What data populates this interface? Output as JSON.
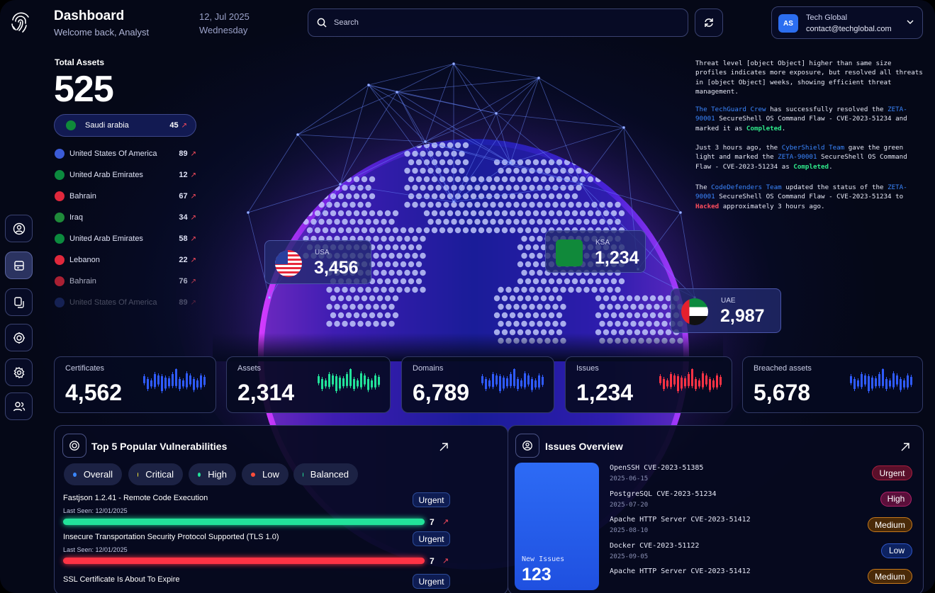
{
  "header": {
    "title": "Dashboard",
    "subtitle": "Welcome back, Analyst",
    "date": "12, Jul 2025",
    "weekday": "Wednesday",
    "search_placeholder": "Search",
    "account": {
      "initials": "AS",
      "name": "Tech Global",
      "email": "contact@techglobal.com"
    }
  },
  "assets": {
    "label": "Total Assets",
    "total": "525",
    "selected": {
      "country": "Saudi arabia",
      "count": "45"
    },
    "countries": [
      {
        "name": "United States Of America",
        "count": "89"
      },
      {
        "name": "United Arab Emirates",
        "count": "12"
      },
      {
        "name": "Bahrain",
        "count": "67"
      },
      {
        "name": "Iraq",
        "count": "34"
      },
      {
        "name": "United Arab Emirates",
        "count": "58"
      },
      {
        "name": "Lebanon",
        "count": "22"
      },
      {
        "name": "Bahrain",
        "count": "76"
      },
      {
        "name": "United States Of America",
        "count": "89"
      }
    ]
  },
  "feed": {
    "p1": "Threat level [object Object] higher than same size profiles indicates more exposure, but resolved all threats in [object Object] weeks, showing efficient threat management.",
    "p2": {
      "team": "The TechGuard Crew",
      "t1": " has successfully resolved the ",
      "id": "ZETA-90001",
      "t2": " SecureShell OS Command Flaw - CVE-2023-51234 and marked it as ",
      "status": "Completed",
      "t3": "."
    },
    "p3": {
      "t0": "Just 3 hours ago, the ",
      "team": "CyberShield Team",
      "t1": " gave the green light and marked the ",
      "id": "ZETA-90001",
      "t2": " SecureShell OS Command Flaw - CVE-2023-51234 as ",
      "status": "Completed",
      "t3": "."
    },
    "p4": {
      "t0": "The ",
      "team": "CodeDefenders Team",
      "t1": " updated the status of the ",
      "id": "ZETA-90001",
      "t2": " SecureShell OS Command Flaw - CVE-2023-51234 to ",
      "status": "Hacked",
      "t3": " approximately 3 hours ago."
    }
  },
  "globe": {
    "usa": {
      "name": "USA",
      "value": "3,456"
    },
    "ksa": {
      "name": "KSA",
      "value": "1,234"
    },
    "uae": {
      "name": "UAE",
      "value": "2,987"
    }
  },
  "stats": [
    {
      "label": "Certificates",
      "value": "4,562",
      "color": "#2f5bff"
    },
    {
      "label": "Assets",
      "value": "2,314",
      "color": "#22e39a"
    },
    {
      "label": "Domains",
      "value": "6,789",
      "color": "#2f5bff"
    },
    {
      "label": "Issues",
      "value": "1,234",
      "color": "#ff3345"
    },
    {
      "label": "Breached assets",
      "value": "5,678",
      "color": "#2f5bff"
    }
  ],
  "vulns": {
    "title": "Top 5 Popular Vulnerabilities",
    "filters": [
      {
        "label": "Overall",
        "color": "#3a86ff"
      },
      {
        "label": "Critical",
        "color": "#f2e53a"
      },
      {
        "label": "High",
        "color": "#22e39a"
      },
      {
        "label": "Low",
        "color": "#ff4d3a"
      },
      {
        "label": "Balanced",
        "color": "#22e39a"
      }
    ],
    "items": [
      {
        "name": "Fastjson 1.2.41 - Remote Code Execution",
        "seen": "Last Seen: 12/01/2025",
        "badge": "Urgent",
        "count": "7",
        "level": 1.0,
        "color": "#22e39a"
      },
      {
        "name": "Insecure Transportation Security Protocol Supported (TLS 1.0)",
        "seen": "Last Seen: 12/01/2025",
        "badge": "Urgent",
        "count": "7",
        "level": 1.0,
        "color": "#ff3345"
      },
      {
        "name": "SSL Certificate Is About To Expire",
        "badge": "Urgent"
      }
    ]
  },
  "issues": {
    "title": "Issues Overview",
    "new_label": "New Issues",
    "new_count": "123",
    "items": [
      {
        "title": "OpenSSH CVE-2023-51385",
        "date": "2025-06-15",
        "severity": "Urgent"
      },
      {
        "title": "PostgreSQL CVE-2023-51234",
        "date": "2025-07-20",
        "severity": "High"
      },
      {
        "title": "Apache HTTP Server CVE-2023-51412",
        "date": "2025-08-10",
        "severity": "Medium"
      },
      {
        "title": "Docker CVE-2023-51122",
        "date": "2025-09-05",
        "severity": "Low"
      },
      {
        "title": "Apache HTTP Server CVE-2023-51412",
        "severity": "Medium"
      }
    ]
  }
}
